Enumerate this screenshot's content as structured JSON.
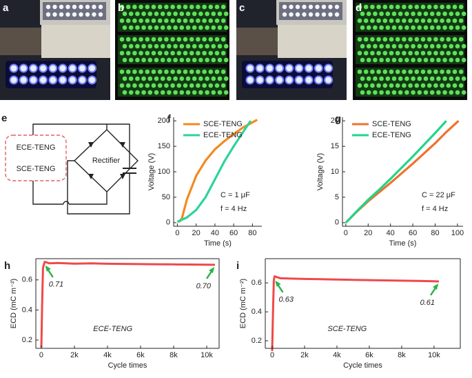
{
  "photos": [
    {
      "label": "a"
    },
    {
      "label": "b"
    },
    {
      "label": "c"
    },
    {
      "label": "d"
    }
  ],
  "circuit": {
    "label": "e",
    "sources": [
      "ECE-TENG",
      "SCE-TENG"
    ],
    "block": "Rectifier"
  },
  "chart_data": [
    {
      "type": "line",
      "panel_label": "f",
      "xlabel": "Time (s)",
      "ylabel": "Voltage (V)",
      "xlim": [
        -4,
        90
      ],
      "ylim": [
        -7,
        207
      ],
      "xticks": [
        0,
        20,
        40,
        60,
        80
      ],
      "yticks": [
        0,
        50,
        100,
        150,
        200
      ],
      "legend": "upper left",
      "notes": [
        "C = 1 μF",
        "f = 4 Hz"
      ],
      "series": [
        {
          "name": "SCE-TENG",
          "color": "#f28a20",
          "x": [
            0,
            3,
            5,
            10,
            20,
            30,
            40,
            50,
            60,
            70,
            80,
            85
          ],
          "values": [
            2,
            3,
            10,
            45,
            92,
            122,
            144,
            160,
            174,
            187,
            197,
            202
          ]
        },
        {
          "name": "ECE-TENG",
          "color": "#2ed39a",
          "x": [
            0,
            10,
            20,
            30,
            40,
            50,
            60,
            70,
            78
          ],
          "values": [
            2,
            10,
            25,
            50,
            85,
            120,
            150,
            178,
            200
          ]
        }
      ]
    },
    {
      "type": "line",
      "panel_label": "g",
      "xlabel": "Time (s)",
      "ylabel": "Voltage (V)",
      "xlim": [
        -3,
        105
      ],
      "ylim": [
        -0.7,
        20.7
      ],
      "xticks": [
        0,
        20,
        40,
        60,
        80,
        100
      ],
      "yticks": [
        0,
        5,
        10,
        15,
        20
      ],
      "legend": "upper left",
      "notes": [
        "C = 22 μF",
        "f = 4 Hz"
      ],
      "series": [
        {
          "name": "SCE-TENG",
          "color": "#f0702e",
          "x": [
            0,
            10,
            20,
            30,
            40,
            50,
            60,
            70,
            80,
            90,
            101
          ],
          "values": [
            0,
            2.2,
            4.2,
            6.0,
            7.8,
            9.7,
            11.6,
            13.6,
            15.6,
            17.8,
            20
          ]
        },
        {
          "name": "ECE-TENG",
          "color": "#20d68a",
          "x": [
            0,
            10,
            20,
            30,
            40,
            50,
            60,
            70,
            80,
            90
          ],
          "values": [
            0,
            2.3,
            4.5,
            6.5,
            8.6,
            10.8,
            13,
            15.3,
            17.6,
            20
          ]
        }
      ]
    },
    {
      "type": "line",
      "panel_label": "h",
      "xlabel": "Cycle times",
      "ylabel": "ECD (mC m⁻²)",
      "label": "ECE-TENG",
      "xlim": [
        -333,
        10750
      ],
      "ylim": [
        0.145,
        0.741
      ],
      "xticks": [
        0,
        {
          "value": 2000,
          "label": "2k"
        },
        {
          "value": 4000,
          "label": "4k"
        },
        {
          "value": 6000,
          "label": "6k"
        },
        {
          "value": 8000,
          "label": "8k"
        },
        {
          "value": 10000,
          "label": "10k"
        }
      ],
      "yticks": [
        0.2,
        0.4,
        0.6
      ],
      "annotations": [
        {
          "text": "0.71",
          "x": 200,
          "y": 0.71
        },
        {
          "text": "0.70",
          "x": 10500,
          "y": 0.7
        }
      ],
      "series": [
        {
          "name": "ECE",
          "color": "#f04848",
          "x": [
            0,
            50,
            100,
            200,
            500,
            1000,
            2000,
            3000,
            4000,
            5000,
            6000,
            7000,
            8000,
            9000,
            10000,
            10500
          ],
          "values": [
            0.15,
            0.45,
            0.68,
            0.72,
            0.71,
            0.712,
            0.708,
            0.71,
            0.707,
            0.706,
            0.705,
            0.704,
            0.703,
            0.702,
            0.701,
            0.7
          ]
        }
      ]
    },
    {
      "type": "line",
      "panel_label": "i",
      "xlabel": "Cycle times",
      "ylabel": "ECD (mC m⁻²)",
      "label": "SCE-TENG",
      "xlim": [
        -426,
        11620
      ],
      "ylim": [
        0.148,
        0.767
      ],
      "xticks": [
        0,
        {
          "value": 2000,
          "label": "2k"
        },
        {
          "value": 4000,
          "label": "4k"
        },
        {
          "value": 6000,
          "label": "6k"
        },
        {
          "value": 8000,
          "label": "8k"
        },
        {
          "value": 10000,
          "label": "10k"
        }
      ],
      "yticks": [
        0.2,
        0.4,
        0.6
      ],
      "annotations": [
        {
          "text": "0.63",
          "x": 150,
          "y": 0.63
        },
        {
          "text": "0.61",
          "x": 10300,
          "y": 0.61
        }
      ],
      "series": [
        {
          "name": "SCE",
          "color": "#f04848",
          "x": [
            0,
            50,
            100,
            150,
            500,
            1000,
            2000,
            3000,
            4000,
            5000,
            6000,
            7000,
            8000,
            9000,
            10000,
            10300
          ],
          "values": [
            0.13,
            0.4,
            0.62,
            0.645,
            0.632,
            0.63,
            0.627,
            0.625,
            0.623,
            0.621,
            0.619,
            0.617,
            0.615,
            0.613,
            0.611,
            0.61
          ]
        }
      ]
    }
  ]
}
